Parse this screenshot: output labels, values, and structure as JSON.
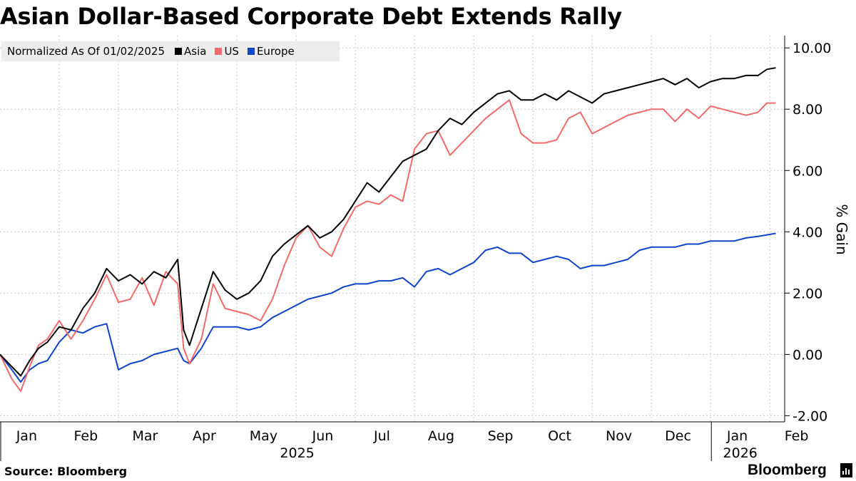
{
  "header": {
    "title": "Asian Dollar-Based Corporate Debt Extends Rally"
  },
  "legend": {
    "label": "Normalized As Of 01/02/2025",
    "items": [
      {
        "name": "Asia",
        "color": "#000000"
      },
      {
        "name": "US",
        "color": "#f06a6a"
      },
      {
        "name": "Europe",
        "color": "#0f43c8"
      }
    ]
  },
  "footer": {
    "source": "Source: Bloomberg",
    "brand": "Bloomberg"
  },
  "chart_data": {
    "type": "line",
    "title": "Asian Dollar-Based Corporate Debt Extends Rally",
    "subtitle": "Normalized As Of 01/02/2025",
    "ylabel": "% Gain",
    "xlabel": "",
    "ylim": [
      -2.2,
      10.4
    ],
    "yticks": [
      "10.00",
      "8.00",
      "6.00",
      "4.00",
      "2.00",
      "0.00",
      "-2.00"
    ],
    "xlim": [
      0,
      13.25
    ],
    "x_months": [
      "Jan",
      "Feb",
      "Mar",
      "Apr",
      "May",
      "Jun",
      "Jul",
      "Aug",
      "Sep",
      "Oct",
      "Nov",
      "Dec",
      "Jan",
      "Feb"
    ],
    "x_years": [
      {
        "label": "2025",
        "month_index": 5.5
      },
      {
        "label": "2026",
        "month_index": 12.5
      }
    ],
    "grid": true,
    "series": [
      {
        "name": "Asia",
        "color": "#000000",
        "x": [
          0,
          0.2,
          0.35,
          0.5,
          0.65,
          0.8,
          1.0,
          1.2,
          1.4,
          1.6,
          1.8,
          2.0,
          2.2,
          2.4,
          2.6,
          2.8,
          3.0,
          3.1,
          3.2,
          3.4,
          3.6,
          3.8,
          4.0,
          4.2,
          4.4,
          4.6,
          4.8,
          5.0,
          5.2,
          5.4,
          5.6,
          5.8,
          6.0,
          6.2,
          6.4,
          6.6,
          6.8,
          7.0,
          7.2,
          7.4,
          7.6,
          7.8,
          8.0,
          8.2,
          8.4,
          8.6,
          8.8,
          9.0,
          9.2,
          9.4,
          9.6,
          9.8,
          10.0,
          10.2,
          10.4,
          10.6,
          10.8,
          11.0,
          11.2,
          11.4,
          11.6,
          11.8,
          12.0,
          12.2,
          12.4,
          12.6,
          12.8,
          12.95,
          13.1
        ],
        "values": [
          0.0,
          -0.4,
          -0.7,
          -0.2,
          0.2,
          0.4,
          0.9,
          0.8,
          1.5,
          2.0,
          2.8,
          2.4,
          2.6,
          2.3,
          2.7,
          2.5,
          3.1,
          0.8,
          0.3,
          1.5,
          2.7,
          2.1,
          1.8,
          2.0,
          2.4,
          3.2,
          3.6,
          3.9,
          4.2,
          3.8,
          4.0,
          4.4,
          5.0,
          5.6,
          5.3,
          5.8,
          6.3,
          6.5,
          6.7,
          7.3,
          7.7,
          7.5,
          7.9,
          8.2,
          8.5,
          8.6,
          8.3,
          8.3,
          8.5,
          8.3,
          8.6,
          8.4,
          8.2,
          8.5,
          8.6,
          8.7,
          8.8,
          8.9,
          9.0,
          8.8,
          9.0,
          8.7,
          8.9,
          9.0,
          9.0,
          9.1,
          9.1,
          9.3,
          9.35
        ]
      },
      {
        "name": "US",
        "color": "#f06a6a",
        "x": [
          0,
          0.2,
          0.35,
          0.5,
          0.65,
          0.8,
          1.0,
          1.2,
          1.4,
          1.6,
          1.8,
          2.0,
          2.2,
          2.4,
          2.6,
          2.8,
          3.0,
          3.1,
          3.2,
          3.4,
          3.6,
          3.8,
          4.0,
          4.2,
          4.4,
          4.6,
          4.8,
          5.0,
          5.2,
          5.4,
          5.6,
          5.8,
          6.0,
          6.2,
          6.4,
          6.6,
          6.8,
          7.0,
          7.2,
          7.4,
          7.6,
          7.8,
          8.0,
          8.2,
          8.4,
          8.6,
          8.8,
          9.0,
          9.2,
          9.4,
          9.6,
          9.8,
          10.0,
          10.2,
          10.4,
          10.6,
          10.8,
          11.0,
          11.2,
          11.4,
          11.6,
          11.8,
          12.0,
          12.2,
          12.4,
          12.6,
          12.8,
          12.95,
          13.1
        ],
        "values": [
          0.0,
          -0.8,
          -1.2,
          -0.4,
          0.3,
          0.5,
          1.1,
          0.5,
          1.1,
          1.8,
          2.6,
          1.7,
          1.8,
          2.5,
          1.6,
          2.7,
          2.3,
          0.2,
          -0.3,
          0.5,
          2.3,
          1.5,
          1.4,
          1.3,
          1.1,
          1.8,
          2.9,
          3.8,
          4.2,
          3.5,
          3.2,
          4.1,
          4.8,
          5.0,
          4.9,
          5.2,
          5.0,
          6.7,
          7.2,
          7.3,
          6.5,
          6.9,
          7.3,
          7.7,
          8.0,
          8.3,
          7.2,
          6.9,
          6.9,
          7.0,
          7.7,
          7.9,
          7.2,
          7.4,
          7.6,
          7.8,
          7.9,
          8.0,
          8.0,
          7.6,
          8.0,
          7.7,
          8.1,
          8.0,
          7.9,
          7.8,
          7.9,
          8.2,
          8.2
        ]
      },
      {
        "name": "Europe",
        "color": "#0f43c8",
        "x": [
          0,
          0.2,
          0.35,
          0.5,
          0.65,
          0.8,
          1.0,
          1.2,
          1.4,
          1.6,
          1.8,
          2.0,
          2.2,
          2.4,
          2.6,
          2.8,
          3.0,
          3.1,
          3.2,
          3.4,
          3.6,
          3.8,
          4.0,
          4.2,
          4.4,
          4.6,
          4.8,
          5.0,
          5.2,
          5.4,
          5.6,
          5.8,
          6.0,
          6.2,
          6.4,
          6.6,
          6.8,
          7.0,
          7.2,
          7.4,
          7.6,
          7.8,
          8.0,
          8.2,
          8.4,
          8.6,
          8.8,
          9.0,
          9.2,
          9.4,
          9.6,
          9.8,
          10.0,
          10.2,
          10.4,
          10.6,
          10.8,
          11.0,
          11.2,
          11.4,
          11.6,
          11.8,
          12.0,
          12.2,
          12.4,
          12.6,
          12.8,
          12.95,
          13.1
        ],
        "values": [
          0.0,
          -0.5,
          -0.9,
          -0.5,
          -0.3,
          -0.2,
          0.4,
          0.8,
          0.7,
          0.9,
          1.0,
          -0.5,
          -0.3,
          -0.2,
          0.0,
          0.1,
          0.2,
          -0.2,
          -0.3,
          0.2,
          0.9,
          0.9,
          0.9,
          0.8,
          0.9,
          1.2,
          1.4,
          1.6,
          1.8,
          1.9,
          2.0,
          2.2,
          2.3,
          2.3,
          2.4,
          2.4,
          2.5,
          2.2,
          2.7,
          2.8,
          2.6,
          2.8,
          3.0,
          3.4,
          3.5,
          3.3,
          3.3,
          3.0,
          3.1,
          3.2,
          3.1,
          2.8,
          2.9,
          2.9,
          3.0,
          3.1,
          3.4,
          3.5,
          3.5,
          3.5,
          3.6,
          3.6,
          3.7,
          3.7,
          3.7,
          3.8,
          3.85,
          3.9,
          3.95
        ]
      }
    ]
  }
}
